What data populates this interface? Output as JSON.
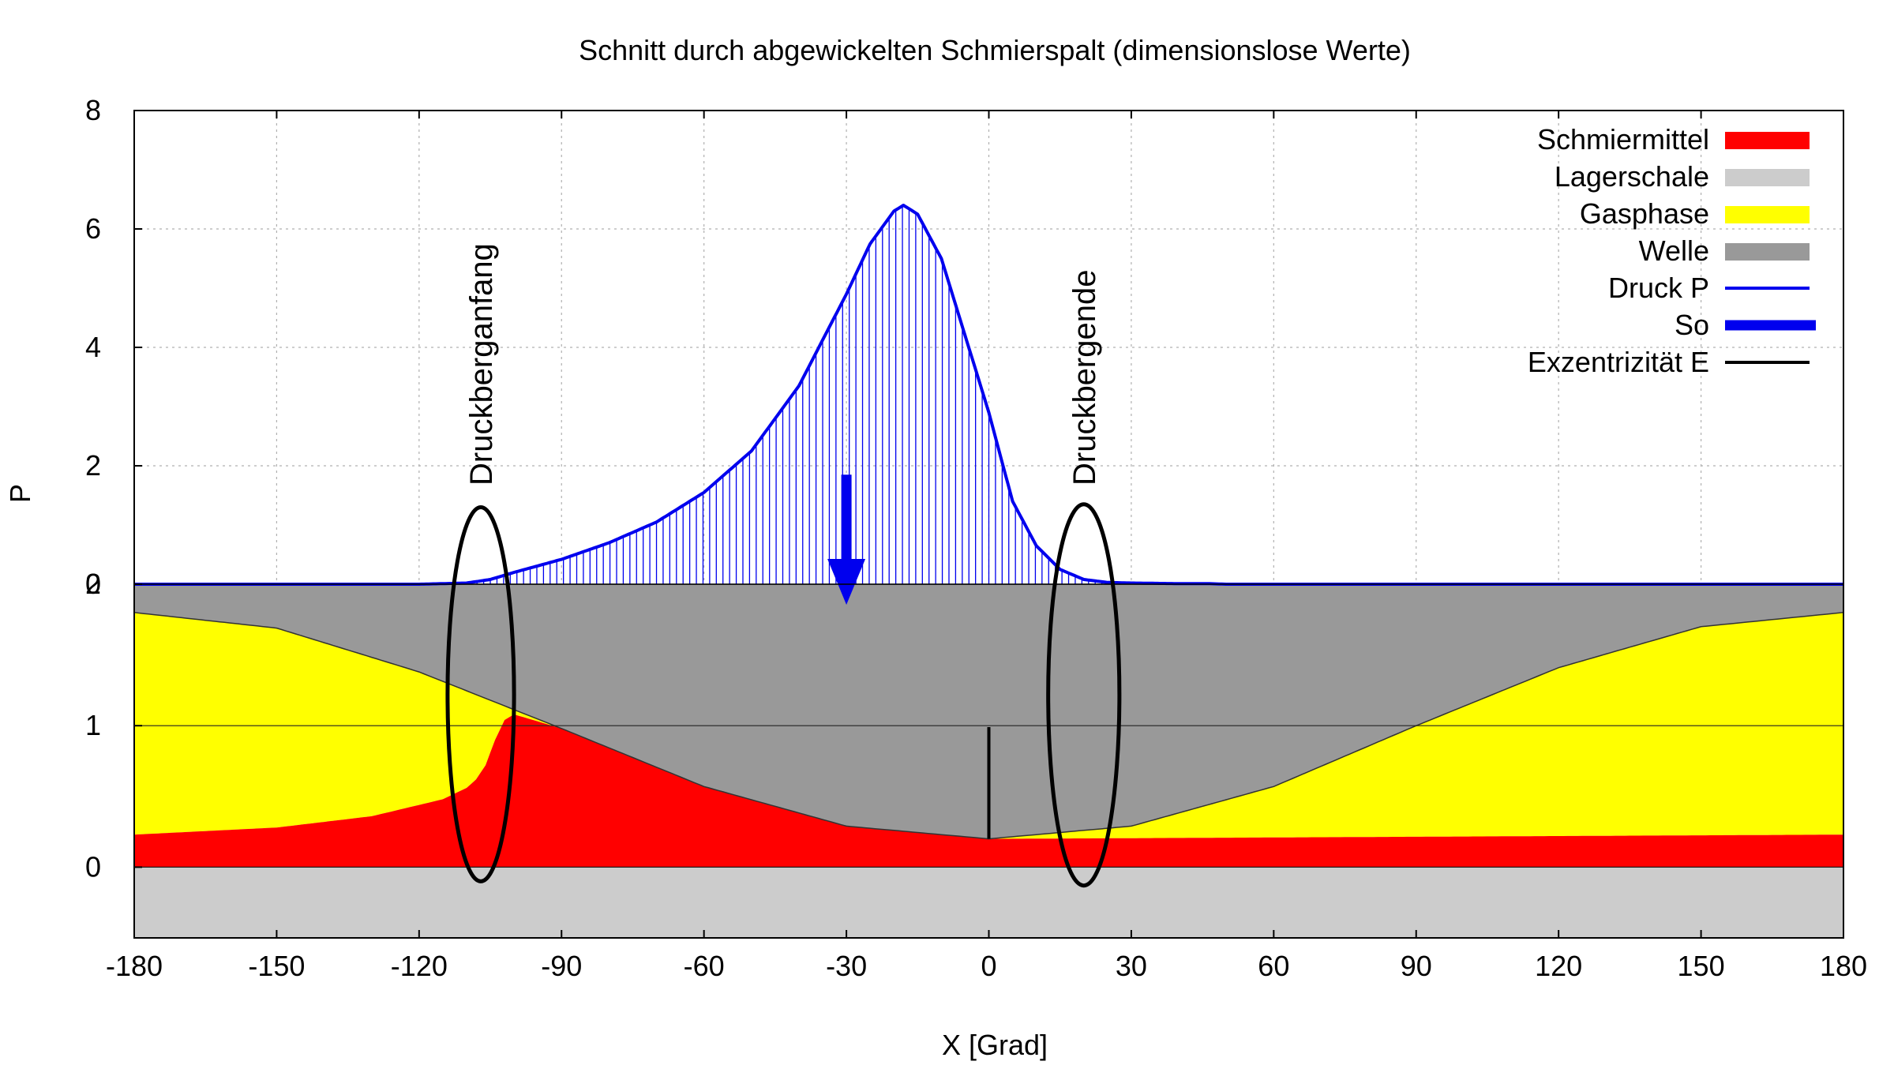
{
  "chart_data": {
    "type": "area",
    "title": "Schnitt durch abgewickelten Schmierspalt (dimensionslose Werte)",
    "xlabel": "X [Grad]",
    "ylabel": "P",
    "xlim": [
      -180,
      180
    ],
    "x_ticks": [
      "-180",
      "-150",
      "-120",
      "-90",
      "-60",
      "-30",
      "0",
      "30",
      "60",
      "90",
      "120",
      "150",
      "180"
    ],
    "upper_panel": {
      "ylim": [
        0,
        8
      ],
      "y_ticks": [
        "0",
        "2",
        "4",
        "6",
        "8"
      ]
    },
    "lower_panel": {
      "ylim": [
        -0.5,
        2
      ],
      "y_ticks": [
        "0",
        "1",
        "2"
      ]
    },
    "grid": true,
    "legend": {
      "position": "top-right",
      "entries": [
        {
          "label": "Schmiermittel",
          "color": "#ff0000",
          "style": "box"
        },
        {
          "label": "Lagerschale",
          "color": "#cccccc",
          "style": "box"
        },
        {
          "label": "Gasphase",
          "color": "#ffff00",
          "style": "box"
        },
        {
          "label": "Welle",
          "color": "#999999",
          "style": "box"
        },
        {
          "label": "Druck P",
          "color": "#0000ee",
          "style": "line"
        },
        {
          "label": "So",
          "color": "#0000ee",
          "style": "thick-line"
        },
        {
          "label": "Exzentrizität E",
          "color": "#000000",
          "style": "line"
        }
      ]
    },
    "annotations": [
      {
        "text": "Druckberganfang",
        "x": -107,
        "rotated": true
      },
      {
        "text": "Druckbergende",
        "x": 20,
        "rotated": true
      }
    ],
    "series": {
      "druck_p": {
        "x": [
          -180,
          -120,
          -110,
          -105,
          -100,
          -90,
          -80,
          -70,
          -60,
          -50,
          -40,
          -30,
          -25,
          -20,
          -18,
          -15,
          -10,
          -5,
          0,
          5,
          10,
          15,
          20,
          25,
          30,
          40,
          46,
          50,
          180
        ],
        "y": [
          0,
          0,
          0.02,
          0.08,
          0.2,
          0.42,
          0.7,
          1.05,
          1.55,
          2.25,
          3.35,
          4.9,
          5.75,
          6.3,
          6.4,
          6.25,
          5.5,
          4.2,
          2.9,
          1.4,
          0.65,
          0.25,
          0.08,
          0.03,
          0.02,
          0.01,
          0.01,
          0,
          0
        ]
      },
      "welle_unterkante": {
        "x": [
          -180,
          -150,
          -120,
          -90,
          -60,
          -30,
          0,
          30,
          60,
          90,
          120,
          150,
          180
        ],
        "y": [
          1.8,
          1.69,
          1.38,
          0.98,
          0.57,
          0.29,
          0.2,
          0.29,
          0.57,
          1.0,
          1.41,
          1.7,
          1.8
        ]
      },
      "schmiermittel_oberkante": {
        "x": [
          -180,
          -150,
          -130,
          -115,
          -110,
          -108,
          -106,
          -104,
          -102,
          -100,
          -90,
          -60,
          -30,
          0,
          1,
          180
        ],
        "y": [
          0.23,
          0.28,
          0.36,
          0.48,
          0.56,
          0.62,
          0.72,
          0.9,
          1.04,
          1.08,
          0.98,
          0.57,
          0.29,
          0.2,
          0.2,
          0.23
        ]
      },
      "so": {
        "x": -30,
        "y_start": 1.85,
        "y_end": 0
      },
      "exzentrizitaet": {
        "x": 0,
        "y_start": 0.2,
        "y_end": 0.99
      }
    },
    "ellipses": [
      {
        "x_center": -107,
        "x_half_width": 7,
        "y_top": 1.3,
        "y_bottom": -0.1
      },
      {
        "x_center": 20,
        "x_half_width": 7.5,
        "y_top": 1.35,
        "y_bottom": -0.13
      }
    ]
  }
}
